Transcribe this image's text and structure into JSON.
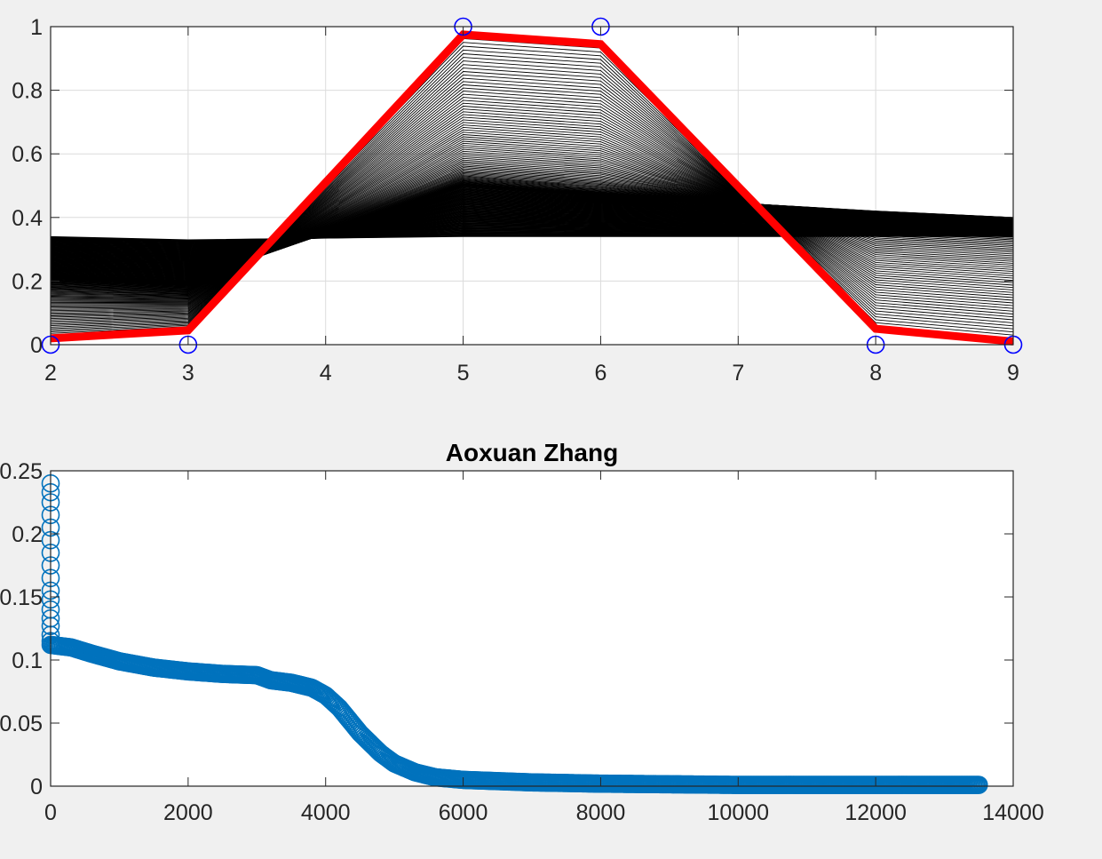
{
  "window": {
    "background": "#f0f0f0"
  },
  "colors": {
    "axes_bg": "#ffffff",
    "axes_edge": "#262626",
    "grid": "#dcdcdc",
    "history_lines": "#000000",
    "final_line": "#ff0000",
    "target_markers": "#0000ff",
    "loss_markers": "#0072bd"
  },
  "chart_data": [
    {
      "type": "line",
      "title": "",
      "xlabel": "",
      "ylabel": "",
      "xlim": [
        2,
        9
      ],
      "ylim": [
        0,
        1
      ],
      "grid": true,
      "xticks": [
        "2",
        "3",
        "4",
        "5",
        "6",
        "7",
        "8",
        "9"
      ],
      "yticks": [
        "0",
        "0.2",
        "0.4",
        "0.6",
        "0.8",
        "1"
      ],
      "x": [
        2,
        3,
        5,
        6,
        8,
        9
      ],
      "series": [
        {
          "role": "target",
          "marker": "circle",
          "color": "#0000ff",
          "values": [
            0,
            0,
            1,
            1,
            0,
            0
          ]
        },
        {
          "role": "final",
          "color": "#ff0000",
          "values": [
            0.02,
            0.045,
            0.975,
            0.945,
            0.05,
            0.01
          ]
        }
      ],
      "history_bundle": {
        "color": "#000000",
        "description_free": true,
        "start": [
          0.34,
          0.33,
          0.34,
          0.34,
          0.34,
          0.34
        ],
        "mid": [
          0.22,
          0.2,
          0.5,
          0.47,
          0.42,
          0.4
        ],
        "end": [
          0.02,
          0.045,
          0.975,
          0.945,
          0.05,
          0.01
        ]
      }
    },
    {
      "type": "scatter",
      "title": "Aoxuan Zhang",
      "xlabel": "",
      "ylabel": "",
      "xlim": [
        0,
        14000
      ],
      "ylim": [
        0,
        0.25
      ],
      "grid": false,
      "xticks": [
        "0",
        "2000",
        "4000",
        "6000",
        "8000",
        "10000",
        "12000",
        "14000"
      ],
      "yticks": [
        "0",
        "0.05",
        "0.1",
        "0.15",
        "0.2",
        "0.25"
      ],
      "marker": "circle",
      "color": "#0072bd",
      "series": [
        {
          "x": [
            0,
            0,
            0,
            0,
            0,
            0,
            0,
            0,
            0,
            0,
            0,
            0,
            0,
            0,
            0,
            0
          ],
          "values": [
            0.24,
            0.233,
            0.225,
            0.215,
            0.205,
            0.195,
            0.185,
            0.175,
            0.165,
            0.155,
            0.148,
            0.14,
            0.133,
            0.127,
            0.12,
            0.115
          ]
        },
        {
          "x": [
            0,
            300,
            600,
            1000,
            1500,
            2000,
            2500,
            3000,
            3200,
            3500,
            3800,
            4000,
            4200,
            4500,
            4800,
            5000,
            5300,
            5600,
            6000,
            7000,
            8000,
            10000,
            12000,
            13500
          ],
          "values": [
            0.112,
            0.11,
            0.105,
            0.099,
            0.094,
            0.091,
            0.089,
            0.088,
            0.084,
            0.082,
            0.078,
            0.072,
            0.062,
            0.042,
            0.026,
            0.018,
            0.011,
            0.007,
            0.005,
            0.003,
            0.002,
            0.001,
            0.001,
            0.001
          ]
        }
      ]
    }
  ]
}
